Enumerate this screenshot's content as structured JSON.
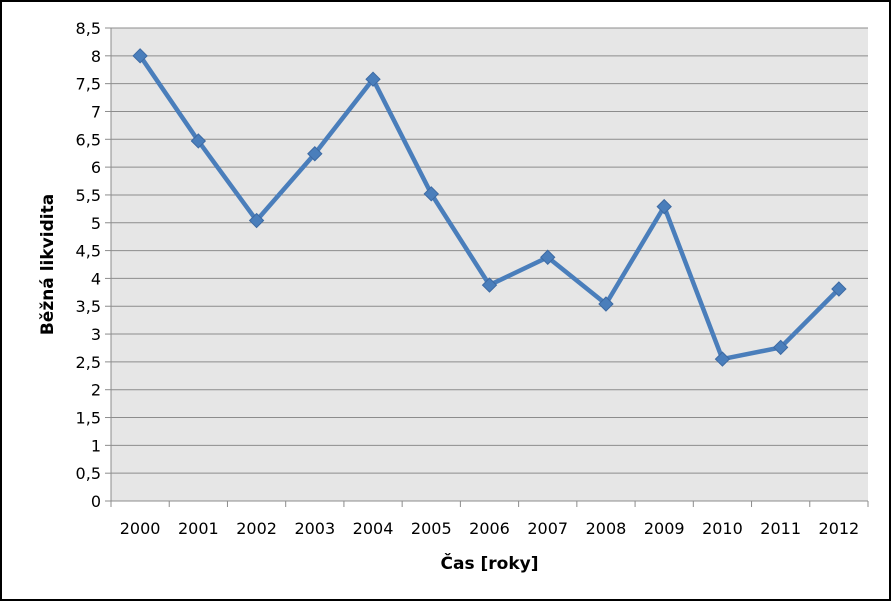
{
  "chart_data": {
    "type": "line",
    "title": "",
    "xlabel": "Čas [roky]",
    "ylabel": "Běžná likvidita",
    "categories": [
      "2000",
      "2001",
      "2002",
      "2003",
      "2004",
      "2005",
      "2006",
      "2007",
      "2008",
      "2009",
      "2010",
      "2011",
      "2012"
    ],
    "series": [
      {
        "values": [
          8.0,
          6.47,
          5.04,
          6.24,
          7.58,
          5.52,
          3.88,
          4.38,
          3.54,
          5.29,
          2.55,
          2.76,
          3.81
        ],
        "color": "#4a7ebb",
        "marker": "diamond"
      }
    ],
    "ylim": [
      0,
      8.5
    ],
    "yticks": [
      "0",
      "0,5",
      "1",
      "1,5",
      "2",
      "2,5",
      "3",
      "3,5",
      "4",
      "4,5",
      "5",
      "5,5",
      "6",
      "6,5",
      "7",
      "7,5",
      "8",
      "8,5"
    ],
    "grid": true,
    "legend": "none",
    "plot_background": "#e6e6e6",
    "gridline_color": "#8c8c8c"
  }
}
